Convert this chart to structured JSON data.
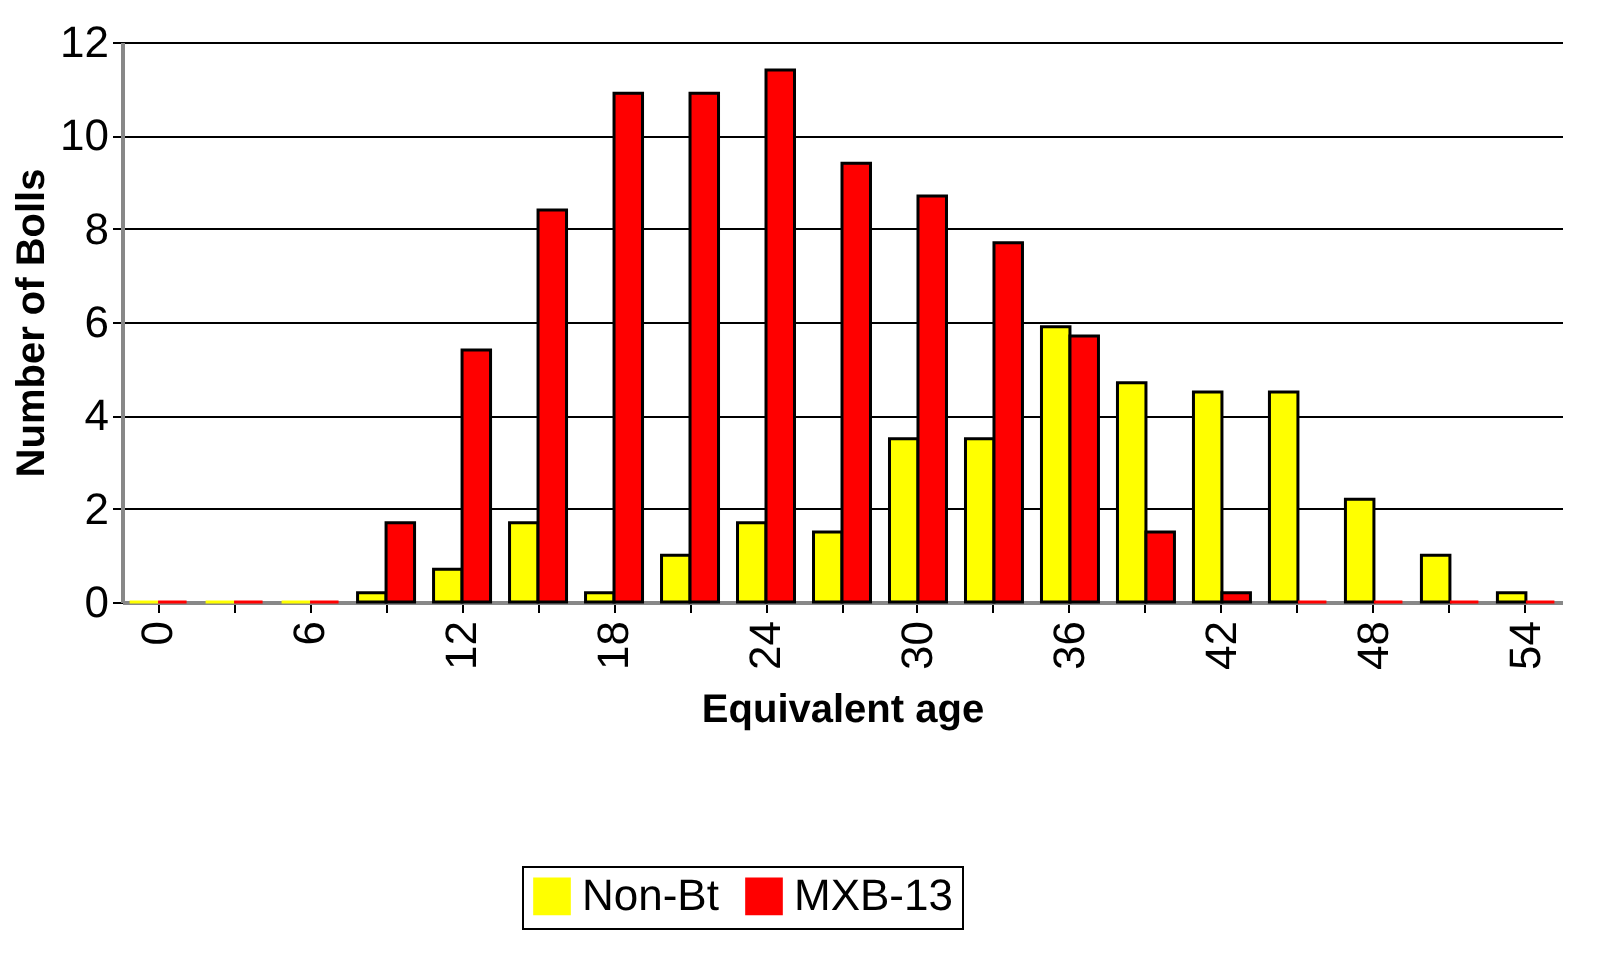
{
  "chart_data": {
    "type": "bar",
    "xlabel": "Equivalent age",
    "ylabel": "Number of Bolls",
    "categories": [
      "0",
      null,
      "6",
      null,
      "12",
      null,
      "18",
      null,
      "24",
      null,
      "30",
      null,
      "36",
      null,
      "42",
      null,
      "48",
      null,
      "54"
    ],
    "series": [
      {
        "name": "Non-Bt",
        "color": "#ffff00",
        "values": [
          0,
          0,
          0,
          0.2,
          0.7,
          1.7,
          0.2,
          1.0,
          1.7,
          1.5,
          3.5,
          3.5,
          5.9,
          4.7,
          4.5,
          4.5,
          2.2,
          1.0,
          0.2
        ]
      },
      {
        "name": "MXB-13",
        "color": "#ff0000",
        "values": [
          0,
          0,
          0,
          1.7,
          5.4,
          8.4,
          10.9,
          10.9,
          11.4,
          9.4,
          8.7,
          7.7,
          5.7,
          1.5,
          0.2,
          0,
          0,
          0,
          0
        ]
      }
    ],
    "ylim": [
      0,
      12
    ],
    "yticks": [
      0,
      2,
      4,
      6,
      8,
      10,
      12
    ],
    "grid": "y",
    "legend": "bottom"
  }
}
